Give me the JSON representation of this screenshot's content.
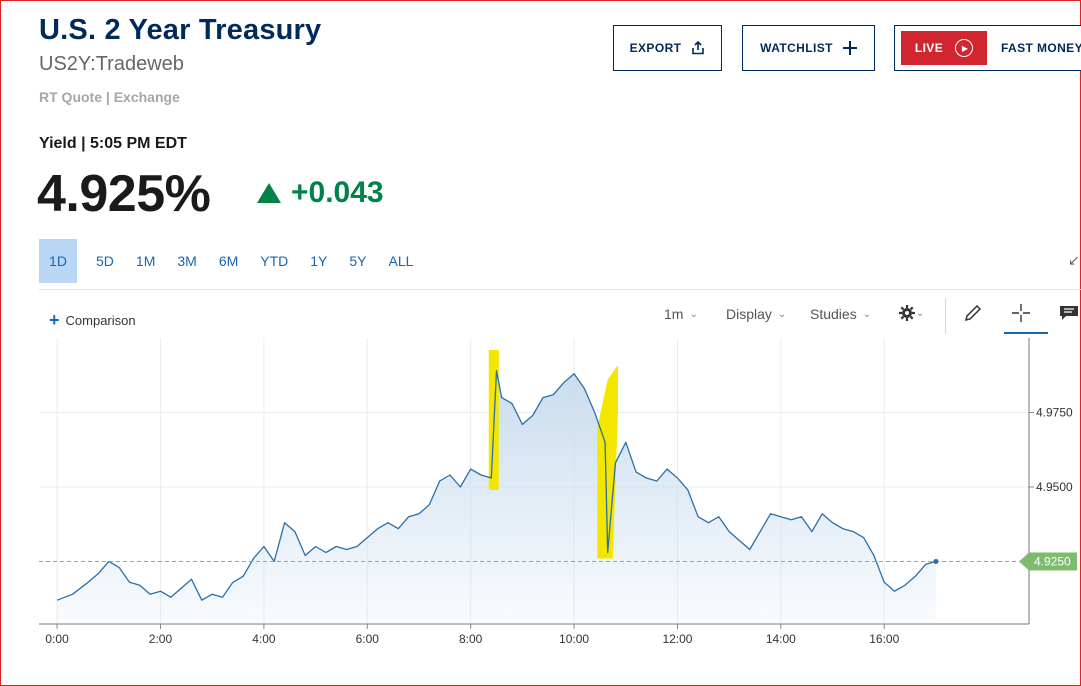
{
  "header": {
    "title": "U.S. 2 Year Treasury",
    "symbol": "US2Y:Tradeweb",
    "quote_source": "RT Quote | Exchange",
    "yield_label": "Yield | 5:05 PM EDT",
    "price": "4.925%",
    "change": "+0.043"
  },
  "buttons": {
    "export": "EXPORT",
    "watchlist": "WATCHLIST",
    "live": "LIVE",
    "fast_money": "FAST MONEY"
  },
  "tabs": [
    "1D",
    "5D",
    "1M",
    "3M",
    "6M",
    "YTD",
    "1Y",
    "5Y",
    "ALL"
  ],
  "active_tab": "1D",
  "toolbar": {
    "comparison": "Comparison",
    "interval": "1m",
    "display": "Display",
    "studies": "Studies"
  },
  "icons": [
    "share-icon",
    "plus-icon",
    "play-icon",
    "expand-icon",
    "gear-icon",
    "pencil-icon",
    "crosshair-icon",
    "comment-icon"
  ],
  "colors": {
    "brand": "#002a5c",
    "link": "#1566b4",
    "positive": "#00834a",
    "live": "#d1252f",
    "line": "#2a6fa8",
    "fill": "#c9dcee",
    "last_badge": "#7dbb6f",
    "highlight": "#f3e600"
  },
  "chart_data": {
    "type": "area",
    "x_ticks": [
      "0:00",
      "2:00",
      "4:00",
      "6:00",
      "8:00",
      "10:00",
      "12:00",
      "14:00",
      "16:00"
    ],
    "y_ticks": [
      "4.9750",
      "4.9500"
    ],
    "last_value": "4.9250",
    "ylim": [
      4.904,
      5.0
    ],
    "xlim": [
      -0.35,
      18.8
    ],
    "grid": true,
    "series": [
      {
        "x": [
          0.0,
          0.3,
          0.6,
          0.8,
          1.0,
          1.2,
          1.4,
          1.6,
          1.8,
          2.0,
          2.2,
          2.4,
          2.6,
          2.8,
          3.0,
          3.2,
          3.4,
          3.6,
          3.8,
          4.0,
          4.2,
          4.4,
          4.6,
          4.8,
          5.0,
          5.2,
          5.4,
          5.6,
          5.8,
          6.0,
          6.2,
          6.4,
          6.6,
          6.8,
          7.0,
          7.2,
          7.4,
          7.6,
          7.8,
          8.0,
          8.2,
          8.4,
          8.5,
          8.6,
          8.8,
          9.0,
          9.2,
          9.4,
          9.6,
          9.8,
          10.0,
          10.2,
          10.4,
          10.6,
          10.65,
          10.8,
          11.0,
          11.2,
          11.4,
          11.6,
          11.8,
          12.0,
          12.2,
          12.4,
          12.6,
          12.8,
          13.0,
          13.2,
          13.4,
          13.6,
          13.8,
          14.0,
          14.2,
          14.4,
          14.6,
          14.8,
          15.0,
          15.2,
          15.4,
          15.6,
          15.8,
          16.0,
          16.2,
          16.4,
          16.6,
          16.8,
          17.0
        ],
        "values": [
          4.912,
          4.914,
          4.918,
          4.921,
          4.925,
          4.923,
          4.918,
          4.917,
          4.914,
          4.915,
          4.913,
          4.916,
          4.919,
          4.912,
          4.914,
          4.913,
          4.918,
          4.92,
          4.926,
          4.93,
          4.925,
          4.938,
          4.935,
          4.927,
          4.93,
          4.928,
          4.93,
          4.929,
          4.93,
          4.933,
          4.936,
          4.938,
          4.936,
          4.94,
          4.941,
          4.944,
          4.952,
          4.954,
          4.95,
          4.956,
          4.954,
          4.953,
          4.989,
          4.98,
          4.978,
          4.971,
          4.974,
          4.98,
          4.981,
          4.985,
          4.988,
          4.983,
          4.975,
          4.965,
          4.928,
          4.958,
          4.965,
          4.955,
          4.953,
          4.952,
          4.956,
          4.953,
          4.949,
          4.94,
          4.938,
          4.94,
          4.935,
          4.932,
          4.929,
          4.935,
          4.941,
          4.94,
          4.939,
          4.94,
          4.935,
          4.941,
          4.938,
          4.936,
          4.935,
          4.933,
          4.927,
          4.918,
          4.915,
          4.917,
          4.92,
          4.924,
          4.925
        ]
      }
    ]
  }
}
